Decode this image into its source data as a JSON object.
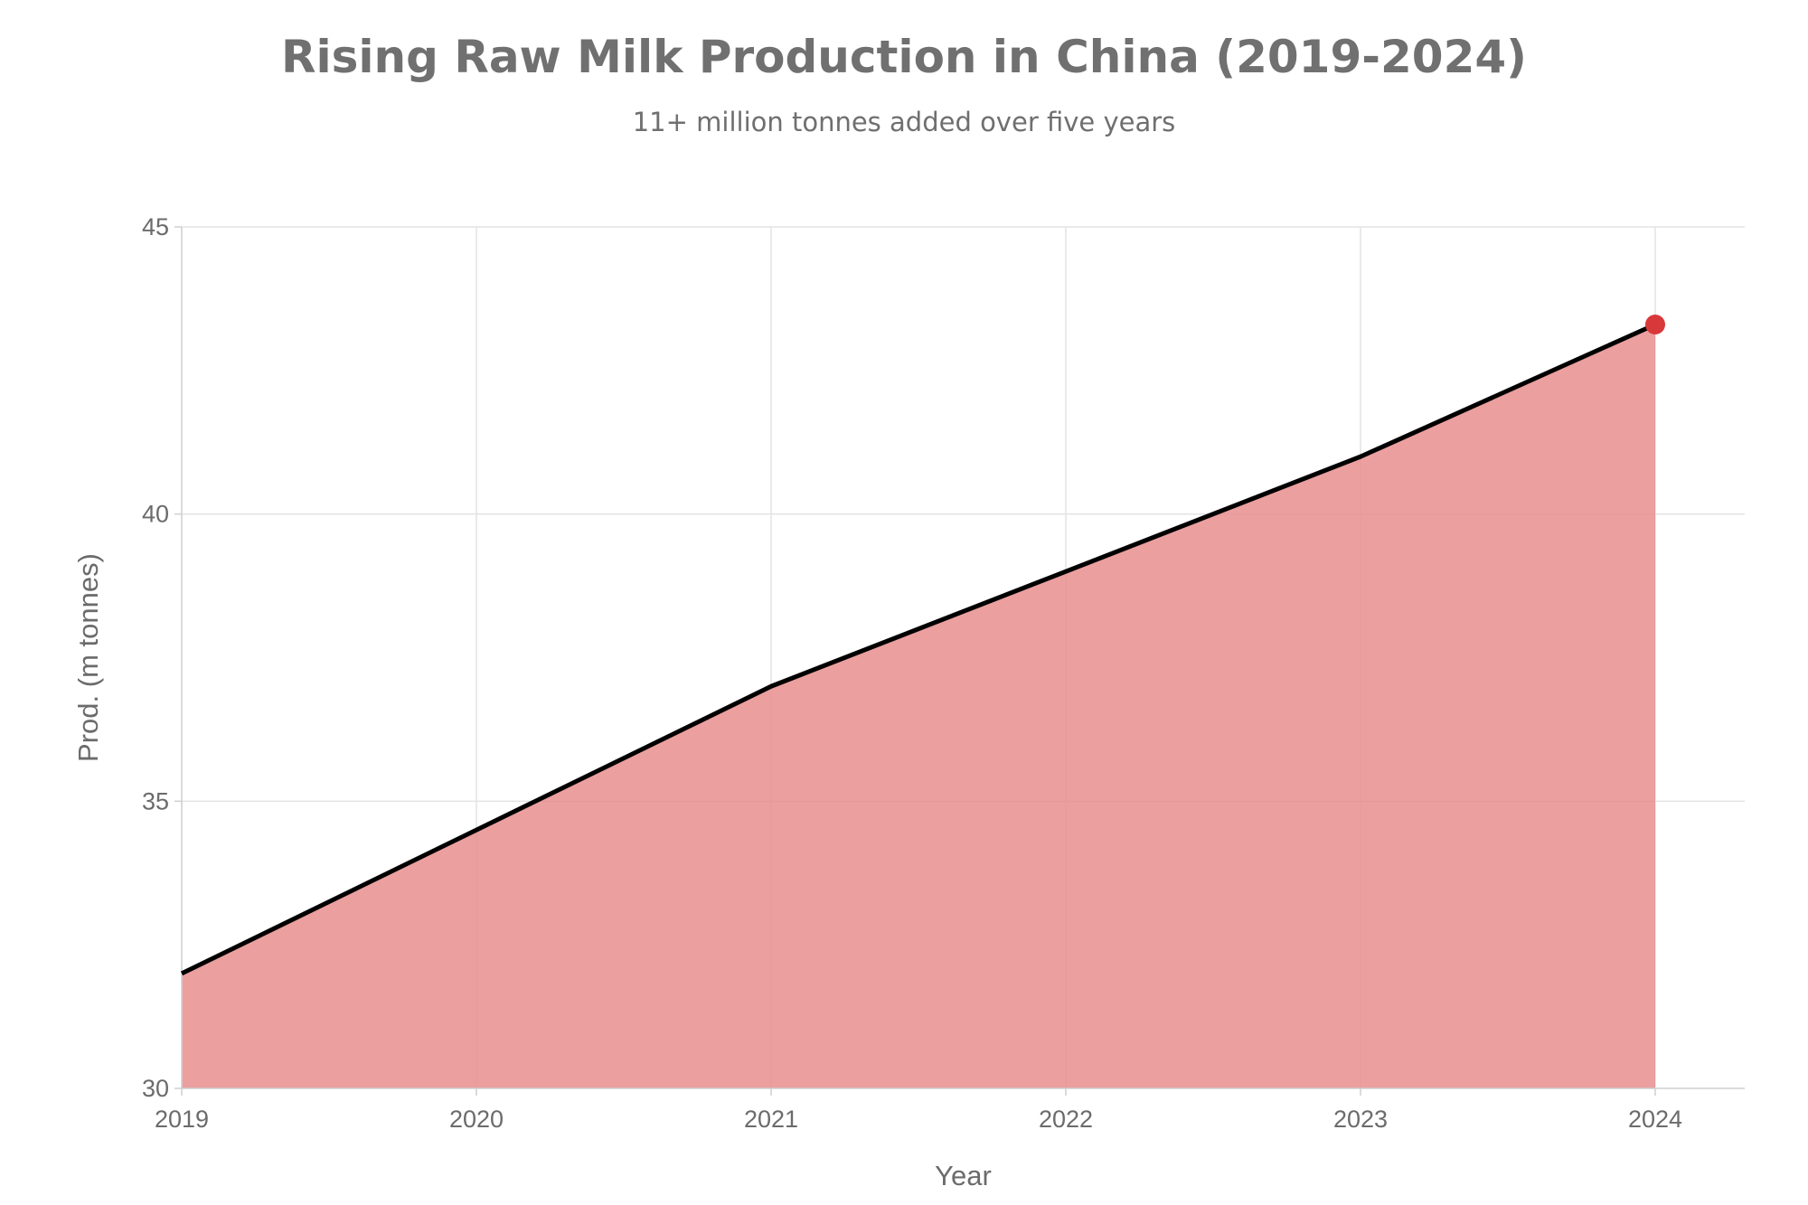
{
  "chart_data": {
    "type": "area",
    "title": "Rising Raw Milk Production in China (2019-2024)",
    "subtitle": "11+ million tonnes added over five years",
    "xlabel": "Year",
    "ylabel": "Prod. (m tonnes)",
    "x": [
      2019,
      2020,
      2021,
      2022,
      2023,
      2024
    ],
    "x_ticks": [
      "2019",
      "2020",
      "2021",
      "2022",
      "2023",
      "2024"
    ],
    "y_ticks": [
      "30",
      "35",
      "40",
      "45"
    ],
    "ylim": [
      30,
      45
    ],
    "grid": true,
    "series": [
      {
        "values": [
          32.0,
          34.5,
          37.0,
          39.0,
          41.0,
          43.3
        ]
      }
    ],
    "highlight_last_point": true,
    "colors": {
      "fill": "#e68a8a",
      "line": "#000000",
      "marker": "#d9383a",
      "grid": "#e3e3e3",
      "text": "#6b6b6b"
    }
  }
}
